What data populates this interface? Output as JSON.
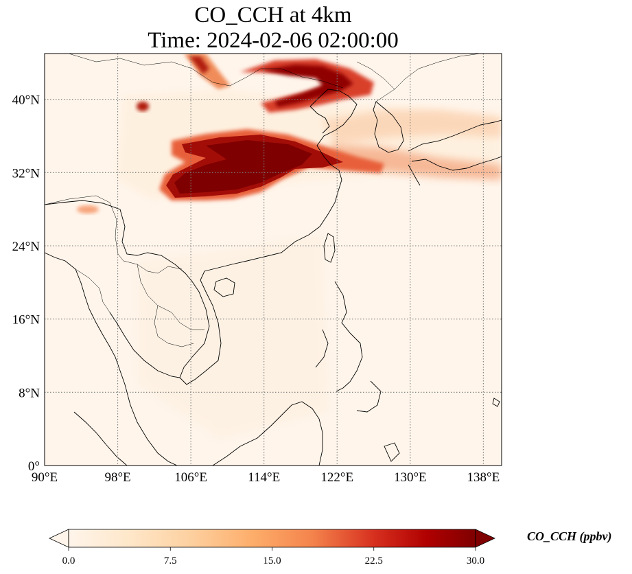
{
  "title": {
    "line1": "CO_CCH at 4km",
    "line2": "Time: 2024-02-06 02:00:00"
  },
  "map": {
    "lon_range": [
      90,
      140
    ],
    "lat_range": [
      0,
      45
    ],
    "lon_ticks": [
      {
        "value": 90,
        "label": "90°E"
      },
      {
        "value": 98,
        "label": "98°E"
      },
      {
        "value": 106,
        "label": "106°E"
      },
      {
        "value": 114,
        "label": "114°E"
      },
      {
        "value": 122,
        "label": "122°E"
      },
      {
        "value": 130,
        "label": "130°E"
      },
      {
        "value": 138,
        "label": "138°E"
      }
    ],
    "lat_ticks": [
      {
        "value": 0,
        "label": "0°"
      },
      {
        "value": 8,
        "label": "8°N"
      },
      {
        "value": 16,
        "label": "16°N"
      },
      {
        "value": 24,
        "label": "24°N"
      },
      {
        "value": 32,
        "label": "32°N"
      },
      {
        "value": 40,
        "label": "40°N"
      }
    ],
    "gridlines": true,
    "background_color": "#fff5eb"
  },
  "colorbar": {
    "label": "CO_CCH (ppbv)",
    "min": 0,
    "max": 30,
    "ticks": [
      {
        "value": 0,
        "label": "0.0"
      },
      {
        "value": 7.5,
        "label": "7.5"
      },
      {
        "value": 15,
        "label": "15.0"
      },
      {
        "value": 22.5,
        "label": "22.5"
      },
      {
        "value": 30,
        "label": "30.0"
      }
    ],
    "colormap": "OrRd",
    "low_color": "#fff5eb",
    "high_color": "#7f0000",
    "extend": "both"
  }
}
